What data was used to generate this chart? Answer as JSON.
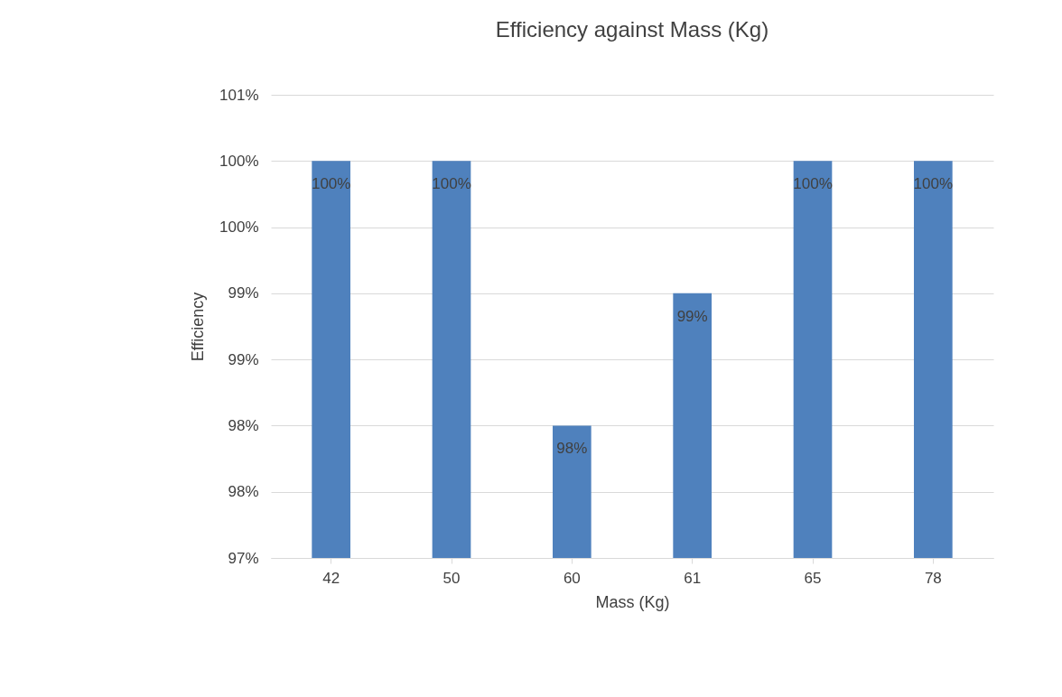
{
  "chart_data": {
    "type": "bar",
    "title": "Efficiency against Mass (Kg)",
    "xlabel": "Mass (Kg)",
    "ylabel": "Efficiency",
    "categories": [
      "42",
      "50",
      "60",
      "61",
      "65",
      "78"
    ],
    "series": [
      {
        "color": "#4f81bd",
        "values": [
          100,
          100,
          98,
          99,
          100,
          100
        ],
        "value_labels": [
          "100%",
          "100%",
          "98%",
          "99%",
          "100%",
          "100%"
        ]
      }
    ],
    "ylim": [
      97,
      100.5
    ],
    "yticks": [
      {
        "value": 97,
        "label": "97%"
      },
      {
        "value": 97.5,
        "label": "98%"
      },
      {
        "value": 98,
        "label": "98%"
      },
      {
        "value": 98.5,
        "label": "99%"
      },
      {
        "value": 99,
        "label": "99%"
      },
      {
        "value": 99.5,
        "label": "100%"
      },
      {
        "value": 100,
        "label": "100%"
      },
      {
        "value": 100.5,
        "label": "101%"
      }
    ],
    "grid": "y",
    "legend": false
  }
}
